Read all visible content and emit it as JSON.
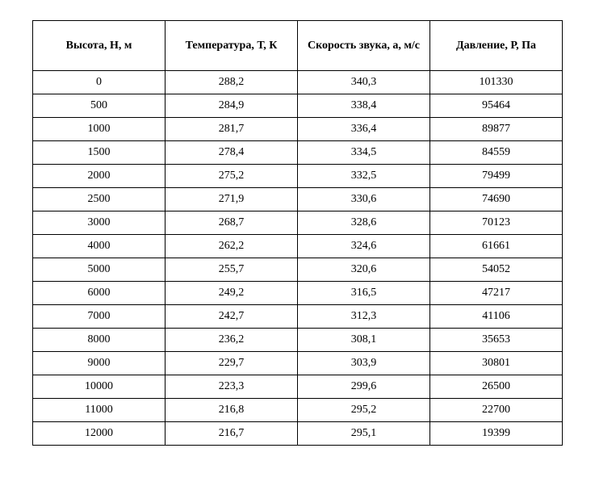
{
  "table": {
    "type": "table",
    "background_color": "#ffffff",
    "border_color": "#000000",
    "text_color": "#000000",
    "font_family": "Times New Roman",
    "header_fontsize": 14,
    "cell_fontsize": 14,
    "header_font_weight": "bold",
    "columns": [
      {
        "label": "Высота, Н, м",
        "width": "25%"
      },
      {
        "label": "Температура, Т, К",
        "width": "25%"
      },
      {
        "label": "Скорость звука, а, м/с",
        "width": "25%"
      },
      {
        "label": "Давление, Р, Па",
        "width": "25%"
      }
    ],
    "rows": [
      [
        "0",
        "288,2",
        "340,3",
        "101330"
      ],
      [
        "500",
        "284,9",
        "338,4",
        "95464"
      ],
      [
        "1000",
        "281,7",
        "336,4",
        "89877"
      ],
      [
        "1500",
        "278,4",
        "334,5",
        "84559"
      ],
      [
        "2000",
        "275,2",
        "332,5",
        "79499"
      ],
      [
        "2500",
        "271,9",
        "330,6",
        "74690"
      ],
      [
        "3000",
        "268,7",
        "328,6",
        "70123"
      ],
      [
        "4000",
        "262,2",
        "324,6",
        "61661"
      ],
      [
        "5000",
        "255,7",
        "320,6",
        "54052"
      ],
      [
        "6000",
        "249,2",
        "316,5",
        "47217"
      ],
      [
        "7000",
        "242,7",
        "312,3",
        "41106"
      ],
      [
        "8000",
        "236,2",
        "308,1",
        "35653"
      ],
      [
        "9000",
        "229,7",
        "303,9",
        "30801"
      ],
      [
        "10000",
        "223,3",
        "299,6",
        "26500"
      ],
      [
        "11000",
        "216,8",
        "295,2",
        "22700"
      ],
      [
        "12000",
        "216,7",
        "295,1",
        "19399"
      ]
    ]
  }
}
